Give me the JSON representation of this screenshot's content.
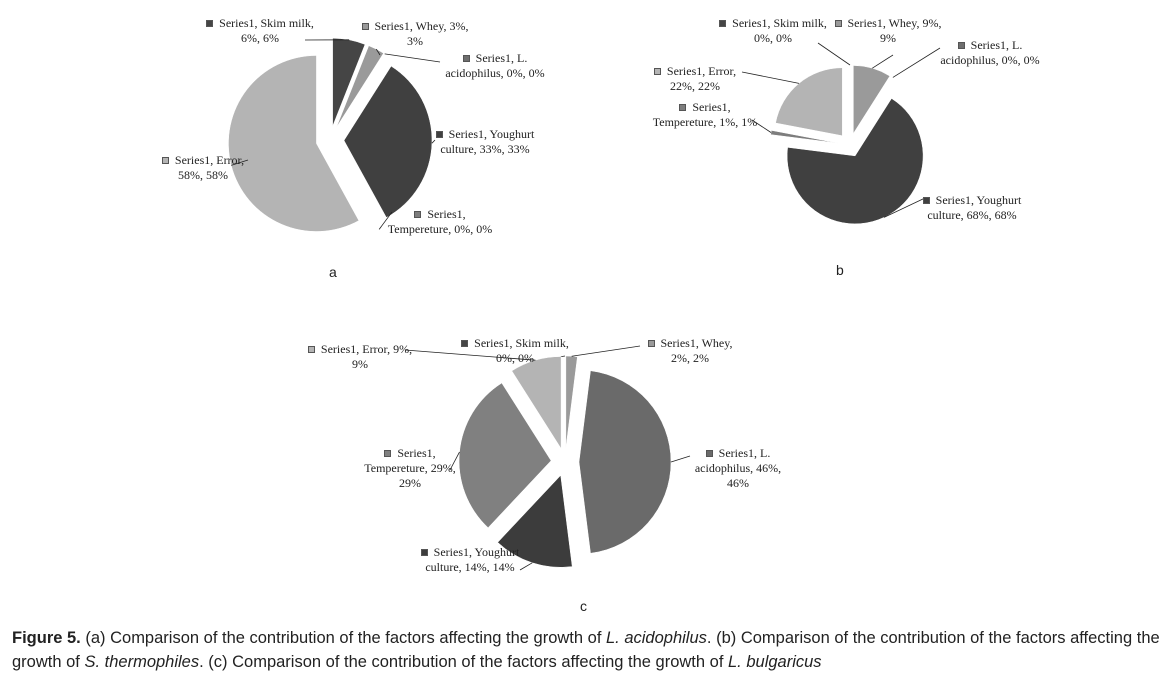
{
  "chart_data": [
    {
      "type": "pie",
      "panel": "a",
      "values": [
        6,
        3,
        0,
        33,
        0,
        58
      ],
      "value_labels": [
        "Series1, Skim milk, 6%, 6%",
        "Series1, Whey, 3%, 3%",
        "Series1, L. acidophilus, 0%, 0%",
        "Series1, Youghurt culture, 33%, 33%",
        "Series1, Tempereture, 0%, 0%",
        "Series1, Error, 58%, 58%"
      ],
      "colors": [
        "#454545",
        "#9a9a9a",
        "#6e6e6e",
        "#404040",
        "#7d7d7d",
        "#b4b4b4"
      ]
    },
    {
      "type": "pie",
      "panel": "b",
      "values": [
        0,
        9,
        0,
        68,
        1,
        22
      ],
      "value_labels": [
        "Series1, Skim milk, 0%, 0%",
        "Series1, Whey, 9%, 9%",
        "Series1, L. acidophilus, 0%, 0%",
        "Series1, Youghurt culture, 68%, 68%",
        "Series1, Tempereture, 1%, 1%",
        "Series1, Error, 22%, 22%"
      ],
      "colors": [
        "#454545",
        "#9a9a9a",
        "#6e6e6e",
        "#404040",
        "#7d7d7d",
        "#b4b4b4"
      ]
    },
    {
      "type": "pie",
      "panel": "c",
      "values": [
        0,
        2,
        46,
        14,
        29,
        9
      ],
      "value_labels": [
        "Series1, Skim milk, 0%, 0%",
        "Series1, Whey, 2%, 2%",
        "Series1, L. acidophilus, 46%, 46%",
        "Series1, Youghurt culture, 14%, 14%",
        "Series1, Tempereture, 29%, 29%",
        "Series1, Error, 9%, 9%"
      ],
      "colors": [
        "#454545",
        "#9a9a9a",
        "#6a6a6a",
        "#3c3c3c",
        "#808080",
        "#b4b4b4"
      ]
    }
  ],
  "caption": [
    {
      "text": "Figure 5.",
      "style": "bold"
    },
    {
      "text": " (a) Comparison of the contribution of the factors affecting the growth of ",
      "style": "normal"
    },
    {
      "text": "L. acidophilus",
      "style": "italic"
    },
    {
      "text": ". (b) Comparison of the contribution of the factors affecting the growth of ",
      "style": "normal"
    },
    {
      "text": "S. thermophiles",
      "style": "italic"
    },
    {
      "text": ". (c) Comparison of the contribution of the factors affecting the growth of ",
      "style": "normal"
    },
    {
      "text": "L. bulgaricus",
      "style": "italic"
    }
  ]
}
